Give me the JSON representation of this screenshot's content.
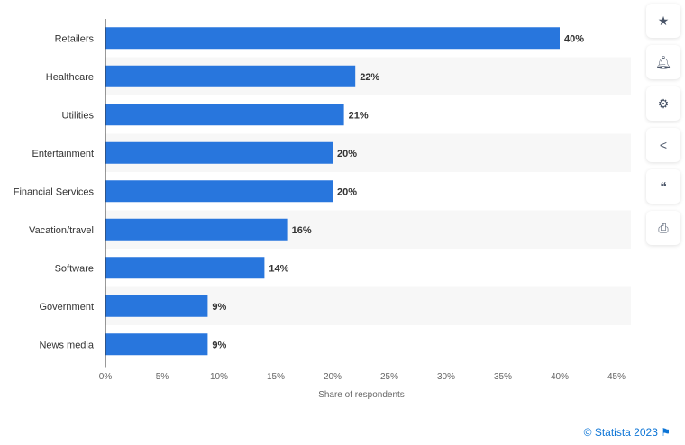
{
  "chart_data": {
    "type": "bar",
    "orientation": "horizontal",
    "categories": [
      "Retailers",
      "Healthcare",
      "Utilities",
      "Entertainment",
      "Financial Services",
      "Vacation/travel",
      "Software",
      "Government",
      "News media"
    ],
    "values": [
      40,
      22,
      21,
      20,
      20,
      16,
      14,
      9,
      9
    ],
    "value_labels": [
      "40%",
      "22%",
      "21%",
      "20%",
      "20%",
      "16%",
      "14%",
      "9%",
      "9%"
    ],
    "xlabel": "Share of respondents",
    "ylabel": "",
    "xlim": [
      0,
      45
    ],
    "ticks": [
      "0%",
      "5%",
      "10%",
      "15%",
      "20%",
      "25%",
      "30%",
      "35%",
      "40%",
      "45%"
    ],
    "bar_color": "#2876dd",
    "grid": false
  },
  "sidebar": [
    {
      "icon": "star-icon",
      "glyph": "★"
    },
    {
      "icon": "bell-icon",
      "glyph": "🔔︎"
    },
    {
      "icon": "gear-icon",
      "glyph": "⚙"
    },
    {
      "icon": "share-icon",
      "glyph": "<"
    },
    {
      "icon": "quote-icon",
      "glyph": "❝"
    },
    {
      "icon": "print-icon",
      "glyph": "⎙"
    }
  ],
  "credit": "© Statista 2023",
  "credit_icon": "flag-icon"
}
